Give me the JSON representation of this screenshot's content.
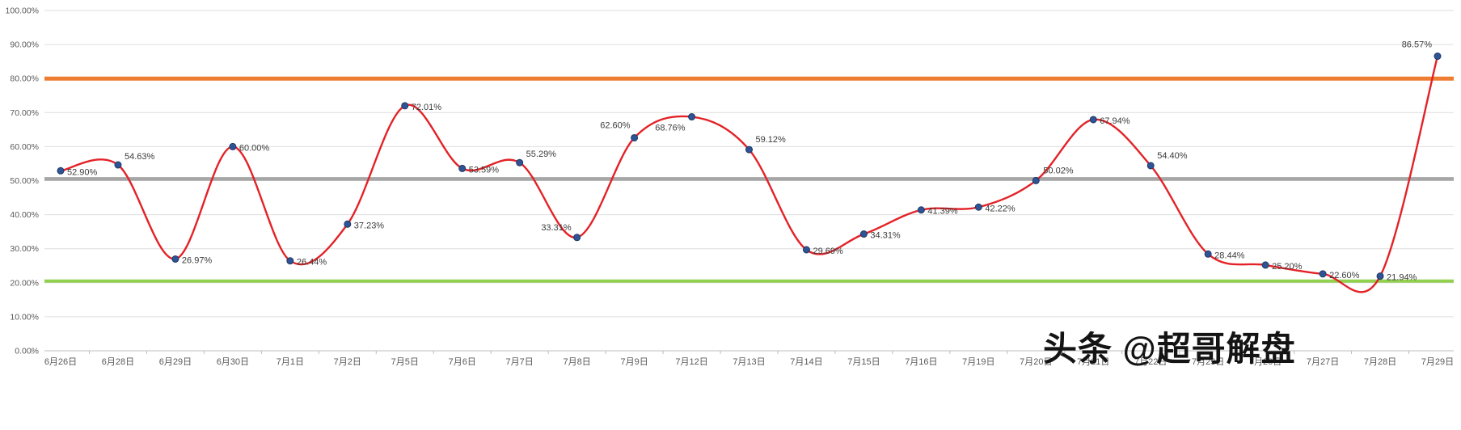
{
  "watermark": {
    "text": "头条 @超哥解盘"
  },
  "chart_data": {
    "type": "line",
    "categories": [
      "6月26日",
      "6月28日",
      "6月29日",
      "6月30日",
      "7月1日",
      "7月2日",
      "7月5日",
      "7月6日",
      "7月7日",
      "7月8日",
      "7月9日",
      "7月12日",
      "7月13日",
      "7月14日",
      "7月15日",
      "7月16日",
      "7月19日",
      "7月20日",
      "7月21日",
      "7月22日",
      "7月23日",
      "7月26日",
      "7月27日",
      "7月28日",
      "7月29日"
    ],
    "series": [
      {
        "name": "",
        "values": [
          52.9,
          54.63,
          26.97,
          60.0,
          26.44,
          37.23,
          72.01,
          53.59,
          55.29,
          33.31,
          62.6,
          68.76,
          59.12,
          29.69,
          34.31,
          41.39,
          42.22,
          50.02,
          67.94,
          54.4,
          28.44,
          25.2,
          22.6,
          21.94,
          86.57
        ]
      }
    ],
    "data_labels": [
      "52.90%",
      "54.63%",
      "26.97%",
      "60.00%",
      "26.44%",
      "37.23%",
      "72.01%",
      "53.59%",
      "55.29%",
      "33.31%",
      "62.60%",
      "68.76%",
      "59.12%",
      "29.69%",
      "34.31%",
      "41.39%",
      "42.22%",
      "50.02%",
      "67.94%",
      "54.40%",
      "28.44%",
      "25.20%",
      "22.60%",
      "21.94%",
      "86.57%"
    ],
    "y_axis": {
      "min": 0,
      "max": 100,
      "step": 10,
      "ticks": [
        "0.00%",
        "10.00%",
        "20.00%",
        "30.00%",
        "40.00%",
        "50.00%",
        "60.00%",
        "70.00%",
        "80.00%",
        "90.00%",
        "100.00%"
      ]
    },
    "reference_lines": [
      {
        "value": 80,
        "color": "#ED7D31",
        "width": 5
      },
      {
        "value": 50.5,
        "color": "#A6A6A6",
        "width": 4.5
      },
      {
        "value": 20.5,
        "color": "#92D050",
        "width": 4
      }
    ],
    "grid": true,
    "legend": "none",
    "style": {
      "line_color": "#E32227",
      "marker_color": "#2F5496",
      "marker_border": "#1F3864",
      "grid_color": "#DEDEDE",
      "axis_color": "#BDBDBD",
      "axis_text_color": "#595959",
      "label_color": "#3B3B3B"
    }
  }
}
